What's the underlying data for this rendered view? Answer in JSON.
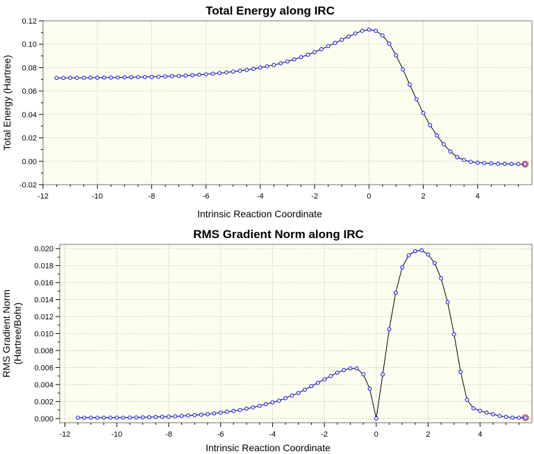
{
  "chart_data": [
    {
      "type": "line",
      "title": "Total Energy along IRC",
      "xlabel": "Intrinsic Reaction Coordinate",
      "ylabel": "Total Energy (Hartree)",
      "xlim": [
        -12,
        6
      ],
      "ylim": [
        -0.02,
        0.12
      ],
      "xticks": [
        -12,
        -10,
        -8,
        -6,
        -4,
        -2,
        0,
        2,
        4
      ],
      "xtick_labels": [
        "-12",
        "-10",
        "-8",
        "-6",
        "-4",
        "-2",
        "0",
        "2",
        "4"
      ],
      "yticks": [
        -0.02,
        0.0,
        0.02,
        0.04,
        0.06,
        0.08,
        0.1,
        0.12
      ],
      "ytick_labels": [
        "-0.02",
        "0.00",
        "0.02",
        "0.04",
        "0.06",
        "0.08",
        "0.10",
        "0.12"
      ],
      "grid": true,
      "line_color": "#000000",
      "marker_color": "#1a1aff",
      "highlight_color": "#d02020",
      "series": [
        {
          "name": "Total Energy",
          "x": [
            -11.5,
            -11.25,
            -11.0,
            -10.75,
            -10.5,
            -10.25,
            -10.0,
            -9.75,
            -9.5,
            -9.25,
            -9.0,
            -8.75,
            -8.5,
            -8.25,
            -8.0,
            -7.75,
            -7.5,
            -7.25,
            -7.0,
            -6.75,
            -6.5,
            -6.25,
            -6.0,
            -5.75,
            -5.5,
            -5.25,
            -5.0,
            -4.75,
            -4.5,
            -4.25,
            -4.0,
            -3.75,
            -3.5,
            -3.25,
            -3.0,
            -2.75,
            -2.5,
            -2.25,
            -2.0,
            -1.75,
            -1.5,
            -1.25,
            -1.0,
            -0.75,
            -0.5,
            -0.25,
            0.0,
            0.25,
            0.5,
            0.75,
            1.0,
            1.25,
            1.5,
            1.75,
            2.0,
            2.25,
            2.5,
            2.75,
            3.0,
            3.25,
            3.5,
            3.75,
            4.0,
            4.25,
            4.5,
            4.75,
            5.0,
            5.25,
            5.5,
            5.75
          ],
          "y": [
            0.0712,
            0.0712,
            0.0713,
            0.0713,
            0.0713,
            0.0714,
            0.0714,
            0.0715,
            0.0715,
            0.0716,
            0.0717,
            0.0718,
            0.0719,
            0.072,
            0.0721,
            0.0723,
            0.0725,
            0.0727,
            0.0729,
            0.0732,
            0.0735,
            0.0739,
            0.0743,
            0.0748,
            0.0753,
            0.0759,
            0.0766,
            0.0773,
            0.0781,
            0.079,
            0.08,
            0.0811,
            0.0823,
            0.0837,
            0.0853,
            0.087,
            0.0889,
            0.091,
            0.0933,
            0.0958,
            0.0984,
            0.1011,
            0.1038,
            0.1065,
            0.1092,
            0.1115,
            0.1125,
            0.1115,
            0.1075,
            0.1005,
            0.0905,
            0.0785,
            0.0655,
            0.053,
            0.0412,
            0.0308,
            0.022,
            0.0145,
            0.0083,
            0.0035,
            0.001,
            -0.0005,
            -0.0012,
            -0.0016,
            -0.0019,
            -0.0021,
            -0.0022,
            -0.0023,
            -0.0024,
            -0.0025
          ]
        }
      ]
    },
    {
      "type": "line",
      "title": "RMS Gradient Norm along IRC",
      "xlabel": "Intrinsic Reaction Coordinate",
      "ylabel": [
        "RMS Gradient Norm",
        "(Hartree/Bohr)"
      ],
      "xlim": [
        -12.2,
        6
      ],
      "ylim": [
        -0.0005,
        0.0205
      ],
      "xticks": [
        -12,
        -10,
        -8,
        -6,
        -4,
        -2,
        0,
        2,
        4
      ],
      "xtick_labels": [
        "-12",
        "-10",
        "-8",
        "-6",
        "-4",
        "-2",
        "0",
        "2",
        "4"
      ],
      "yticks": [
        0.0,
        0.002,
        0.004,
        0.006,
        0.008,
        0.01,
        0.012,
        0.014,
        0.016,
        0.018,
        0.02
      ],
      "ytick_labels": [
        "0.000",
        "0.002",
        "0.004",
        "0.006",
        "0.008",
        "0.010",
        "0.012",
        "0.014",
        "0.016",
        "0.018",
        "0.020"
      ],
      "grid": true,
      "line_color": "#000000",
      "marker_color": "#1a1aff",
      "highlight_color": "#d02020",
      "series": [
        {
          "name": "RMS Gradient Norm",
          "x": [
            -11.5,
            -11.25,
            -11.0,
            -10.75,
            -10.5,
            -10.25,
            -10.0,
            -9.75,
            -9.5,
            -9.25,
            -9.0,
            -8.75,
            -8.5,
            -8.25,
            -8.0,
            -7.75,
            -7.5,
            -7.25,
            -7.0,
            -6.75,
            -6.5,
            -6.25,
            -6.0,
            -5.75,
            -5.5,
            -5.25,
            -5.0,
            -4.75,
            -4.5,
            -4.25,
            -4.0,
            -3.75,
            -3.5,
            -3.25,
            -3.0,
            -2.75,
            -2.5,
            -2.25,
            -2.0,
            -1.75,
            -1.5,
            -1.25,
            -1.0,
            -0.75,
            -0.5,
            -0.25,
            0.0,
            0.25,
            0.5,
            0.75,
            1.0,
            1.25,
            1.5,
            1.75,
            2.0,
            2.25,
            2.5,
            2.75,
            3.0,
            3.25,
            3.5,
            3.75,
            4.0,
            4.25,
            4.5,
            4.75,
            5.0,
            5.25,
            5.5,
            5.75
          ],
          "y": [
            0.0001,
            0.0001,
            0.0001,
            0.0001,
            0.0001,
            0.0001,
            0.0001,
            0.0001,
            0.00012,
            0.00013,
            0.00014,
            0.00016,
            0.00018,
            0.0002,
            0.00022,
            0.00025,
            0.0003,
            0.00035,
            0.0004,
            0.00045,
            0.0005,
            0.0006,
            0.0007,
            0.0008,
            0.0009,
            0.001,
            0.00115,
            0.0013,
            0.0015,
            0.0017,
            0.0019,
            0.0021,
            0.0024,
            0.0027,
            0.003,
            0.0034,
            0.0038,
            0.0042,
            0.0046,
            0.005,
            0.0054,
            0.0057,
            0.0059,
            0.0059,
            0.0052,
            0.0035,
            0.0,
            0.0052,
            0.0105,
            0.0148,
            0.0178,
            0.0192,
            0.0197,
            0.0198,
            0.0193,
            0.0183,
            0.0165,
            0.0137,
            0.0099,
            0.0055,
            0.0022,
            0.0012,
            0.0009,
            0.0007,
            0.0005,
            0.0003,
            0.0002,
            0.0001,
            0.0001,
            0.0001
          ]
        }
      ]
    }
  ]
}
